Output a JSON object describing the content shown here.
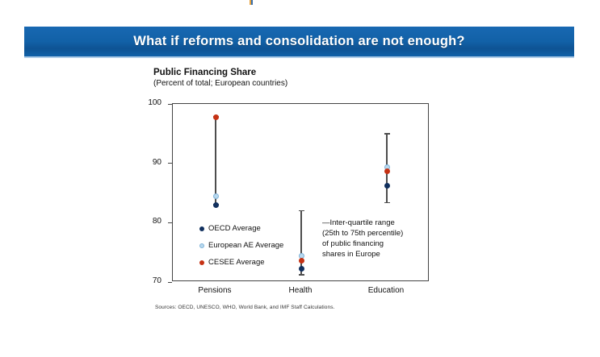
{
  "banner": {
    "title": "What if reforms and consolidation are not enough?",
    "bg_color": "#1261a7",
    "text_color": "#ffffff"
  },
  "top_mark": {
    "colors": [
      "#e8a33d",
      "#3a6ea8"
    ]
  },
  "chart": {
    "title": "Public Financing Share",
    "subtitle": "(Percent of total; European countries)",
    "annotation_lines": [
      "—Inter-quartile range",
      "(25th to 75th percentile)",
      "of public financing",
      "shares in Europe"
    ],
    "sources": "Sources: OECD, UNESCO, WHO, World Bank, and IMF Staff Calculations."
  },
  "chart_data": {
    "type": "scatter",
    "title": "Public Financing Share",
    "subtitle": "(Percent of total; European countries)",
    "categories": [
      "Pensions",
      "Health",
      "Education"
    ],
    "ylim": [
      70,
      100
    ],
    "yticks": [
      70,
      80,
      90,
      100
    ],
    "grid": false,
    "legend_position": "inside-bottom-left",
    "series": [
      {
        "name": "OECD Average",
        "color": "#11305e",
        "values": [
          83.0,
          72.2,
          86.2
        ]
      },
      {
        "name": "European AE Average",
        "color": "#b9d9ee",
        "border_color": "#7fb2d8",
        "values": [
          84.5,
          74.4,
          89.4
        ]
      },
      {
        "name": "CESEE Average",
        "color": "#c63214",
        "values": [
          97.8,
          73.6,
          88.6
        ]
      }
    ],
    "iqr": {
      "label": "Inter-quartile range (25th to 75th percentile) of public financing shares in Europe",
      "line_color": "#4d4d4d",
      "ranges": [
        [
          83.0,
          97.8
        ],
        [
          71.2,
          82.0
        ],
        [
          83.4,
          95.0
        ]
      ]
    }
  }
}
